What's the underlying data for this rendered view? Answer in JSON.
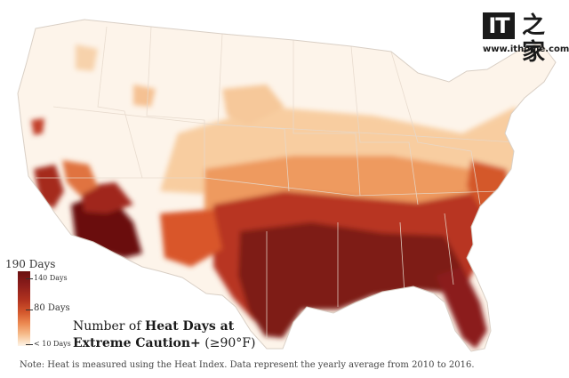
{
  "map": {
    "title_prefix": "Number of ",
    "title_bold_1": "Heat Days at",
    "title_bold_2": "Extreme Caution+",
    "title_suffix": " (≥90°F)"
  },
  "legend": {
    "max_label": "190 Days",
    "tick_140": "140 Days",
    "tick_80": "80 Days",
    "tick_10": "< 10 Days",
    "colors": [
      "#6a1010",
      "#8b1d1b",
      "#b0321f",
      "#d4582c",
      "#ec8a52",
      "#f6bb8a",
      "#fbe0c4",
      "#fdf3e8"
    ]
  },
  "note": "Note: Heat is measured using the Heat Index. Data represent the yearly average from 2010 to 2016.",
  "watermark": {
    "mark": "IT",
    "glyph": "之家",
    "url": "www.ithome.com"
  }
}
